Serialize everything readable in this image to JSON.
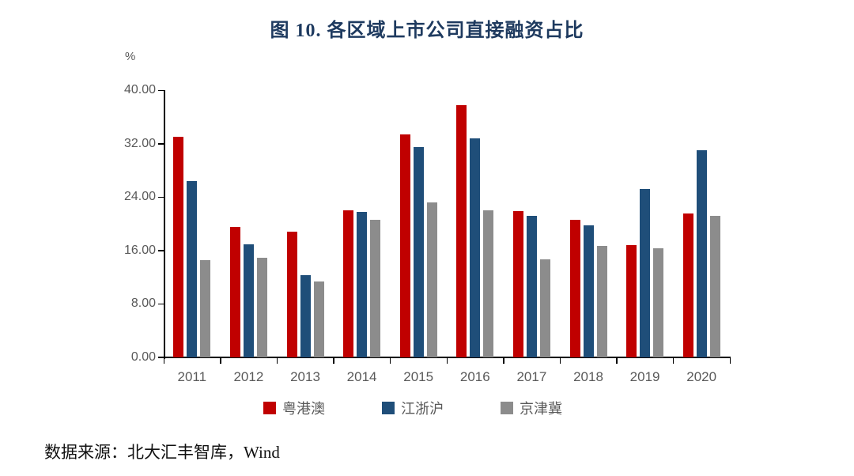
{
  "page": {
    "title": "图 10.  各区域上市公司直接融资占比",
    "source_note": "数据来源：北大汇丰智库，Wind"
  },
  "chart_data": {
    "type": "bar",
    "title": "图 10.  各区域上市公司直接融资占比",
    "unit_label": "%",
    "xlabel": "",
    "ylabel": "%",
    "ylim": [
      0,
      40
    ],
    "grid": false,
    "legend_position": "bottom",
    "categories": [
      "2011",
      "2012",
      "2013",
      "2014",
      "2015",
      "2016",
      "2017",
      "2018",
      "2019",
      "2020"
    ],
    "series": [
      {
        "name": "粤港澳",
        "slug": "yuegangao",
        "color": "#C00000",
        "values": [
          33.0,
          19.5,
          18.8,
          22.0,
          33.4,
          37.7,
          21.9,
          20.6,
          16.8,
          21.5
        ]
      },
      {
        "name": "江浙沪",
        "slug": "jiangzhehu",
        "color": "#1F4E79",
        "values": [
          26.4,
          16.9,
          12.3,
          21.8,
          31.5,
          32.8,
          21.1,
          19.7,
          25.2,
          31.0
        ]
      },
      {
        "name": "京津冀",
        "slug": "jingjinji",
        "color": "#8C8C8C",
        "values": [
          14.5,
          14.9,
          11.3,
          20.6,
          23.2,
          22.0,
          14.6,
          16.7,
          16.3,
          21.2
        ]
      }
    ],
    "yticks": [
      {
        "value": 40,
        "label": "40.00"
      },
      {
        "value": 32,
        "label": "32.00"
      },
      {
        "value": 24,
        "label": "24.00"
      },
      {
        "value": 16,
        "label": "16.00"
      },
      {
        "value": 8,
        "label": "8.00"
      },
      {
        "value": 0,
        "label": "0.00"
      }
    ],
    "colors": {
      "axis": "#000000",
      "tick_label": "#595959",
      "title": "#1E3A5F"
    },
    "source": "数据来源：北大汇丰智库，Wind"
  }
}
